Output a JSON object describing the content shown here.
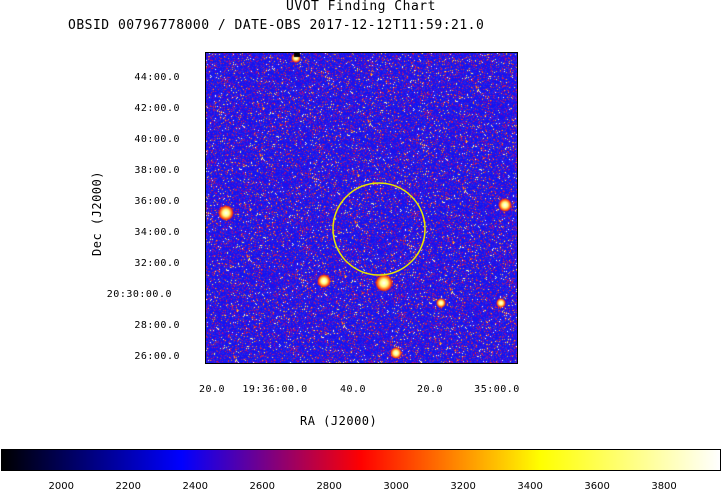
{
  "header": {
    "title": "UVOT Finding Chart",
    "subtitle": "OBSID 00796778000 / DATE-OBS 2017-12-12T11:59:21.0"
  },
  "chart_data": {
    "type": "heatmap",
    "title": "UVOT Finding Chart",
    "subtitle": "OBSID 00796778000 / DATE-OBS 2017-12-12T11:59:21.0",
    "xlabel": "RA (J2000)",
    "ylabel": "Dec (J2000)",
    "x_tick_labels": [
      "20.0",
      "19:36:00.0",
      "40.0",
      "20.0",
      "35:00.0"
    ],
    "y_tick_labels": [
      "44:00.0",
      "42:00.0",
      "40:00.0",
      "38:00.0",
      "36:00.0",
      "34:00.0",
      "32:00.0",
      "20:30:00.0",
      "28:00.0",
      "26:00.0"
    ],
    "colorbar": {
      "ticks": [
        2000,
        2200,
        2400,
        2600,
        2800,
        3000,
        3200,
        3400,
        3600,
        3800
      ],
      "range": [
        1820,
        3970
      ],
      "colormap": [
        "#000000",
        "#0000ff",
        "#ff0000",
        "#ffff00",
        "#ffffff"
      ]
    },
    "marker": {
      "shape": "circle",
      "color": "#e8e800"
    },
    "grid": false,
    "background_color": "#1a1af0"
  }
}
